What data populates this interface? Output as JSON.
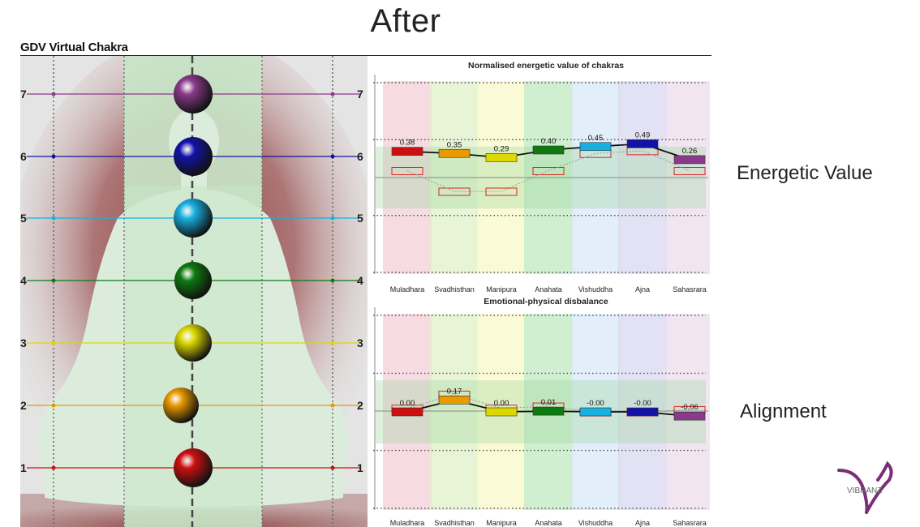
{
  "page": {
    "title": "After",
    "panel_heading": "GDV Virtual Chakra",
    "side_labels": {
      "energy": "Energetic Value",
      "alignment": "Alignment"
    },
    "logo_text": "VIBRANZ"
  },
  "colors": {
    "chakras": [
      "#cc1010",
      "#e89a00",
      "#dcd800",
      "#0e7a10",
      "#18b0e0",
      "#1212a8",
      "#8a3a8a"
    ],
    "bands": [
      "#f3d0d8",
      "#e0f0c8",
      "#f8f8c8",
      "#c0e8c0",
      "#d8e8f8",
      "#d8d8f0",
      "#ecdcec"
    ],
    "body_silhouette": "#dcecdc",
    "aura": "#8a3f3f"
  },
  "body_panel": {
    "levels": [
      "1",
      "2",
      "3",
      "4",
      "5",
      "6",
      "7"
    ]
  },
  "chart_data": [
    {
      "type": "bar",
      "title": "Normalised energetic value of chakras",
      "categories": [
        "Muladhara",
        "Svadhisthan",
        "Manipura",
        "Anahata",
        "Vishuddha",
        "Ajna",
        "Sahasrara"
      ],
      "series": [
        {
          "values": [
            0.38,
            0.35,
            0.29,
            0.4,
            0.45,
            0.49,
            0.26
          ]
        },
        {
          "values": [
            0.1,
            -0.2,
            -0.2,
            0.1,
            0.35,
            0.39,
            0.1
          ]
        }
      ],
      "value_labels": [
        "0.38",
        "0.35",
        "0.29",
        "0.40",
        "0.45",
        "0.49",
        "0.26"
      ],
      "ylim": [
        -1.4,
        1.4
      ],
      "grid": true
    },
    {
      "type": "bar",
      "title": "Emotional-physical disbalance",
      "categories": [
        "Muladhara",
        "Svadhisthan",
        "Manipura",
        "Anahata",
        "Vishuddha",
        "Ajna",
        "Sahasrara"
      ],
      "series": [
        {
          "values": [
            0.0,
            0.17,
            0.0,
            0.01,
            -0.0,
            -0.0,
            -0.06
          ]
        },
        {
          "values": [
            0.05,
            0.25,
            0.05,
            0.08,
            0.0,
            0.0,
            0.03
          ]
        }
      ],
      "value_labels": [
        "0.00",
        "0.17",
        "0.00",
        "0.01",
        "-0.00",
        "-0.00",
        "-0.06"
      ],
      "ylim": [
        -1.4,
        1.4
      ],
      "grid": true
    }
  ]
}
